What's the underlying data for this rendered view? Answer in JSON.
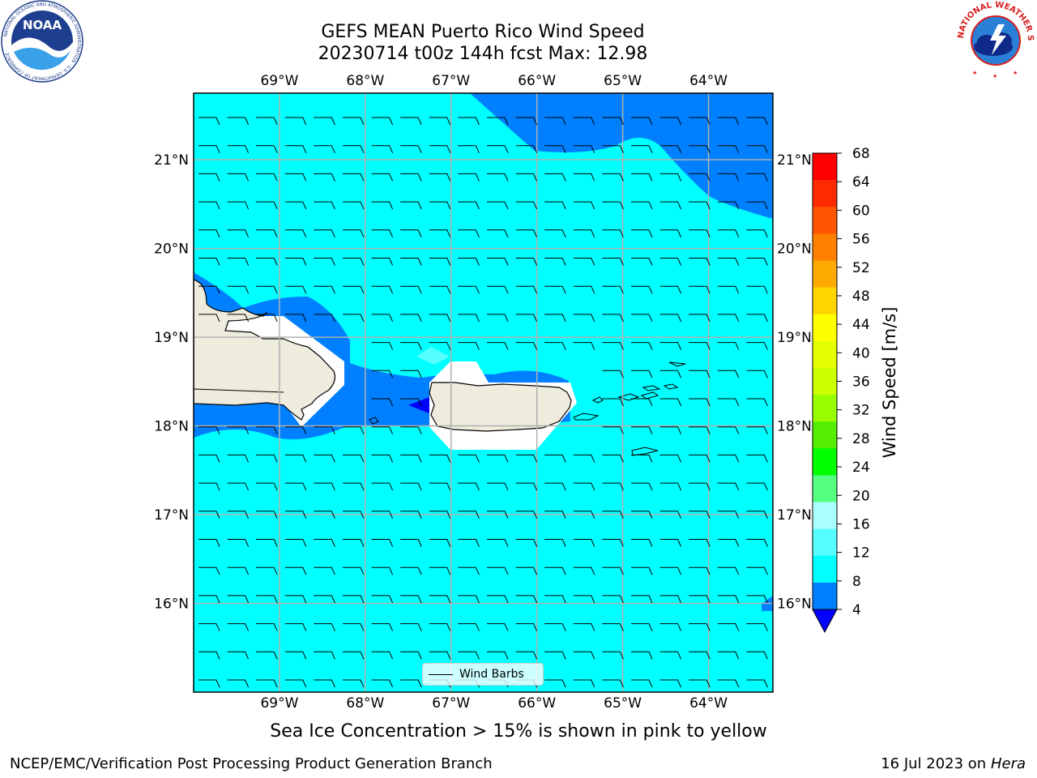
{
  "title": {
    "line1": "GEFS MEAN Puerto Rico Wind Speed",
    "line2": "20230714 t00z 144h fcst   Max: 12.98"
  },
  "logos": {
    "left": {
      "icon": "noaa-logo",
      "text": "NOAA",
      "ring_text": "NATIONAL OCEANIC AND ATMOSPHERIC ADMINISTRATION · U.S. DEPARTMENT OF COMMERCE"
    },
    "right": {
      "icon": "nws-logo",
      "ring_text": "NATIONAL WEATHER SERVICE"
    }
  },
  "map": {
    "lon_labels": [
      "69°W",
      "68°W",
      "67°W",
      "66°W",
      "65°W",
      "64°W"
    ],
    "lat_labels": [
      "21°N",
      "20°N",
      "19°N",
      "18°N",
      "17°N",
      "16°N"
    ],
    "lon_range": [
      -70,
      -63.25
    ],
    "lat_range": [
      15,
      21.75
    ],
    "colors": {
      "wind_4_8": "#0080ff",
      "wind_8_12": "#00ffff",
      "below_4": "#0000ff",
      "land": "#eeecdc",
      "grid": "#b0b0b0"
    },
    "legend": {
      "label": "Wind Barbs"
    }
  },
  "colorbar": {
    "title": "Wind Speed [m/s]",
    "ticks": [
      "68",
      "64",
      "60",
      "56",
      "52",
      "48",
      "44",
      "40",
      "36",
      "32",
      "28",
      "24",
      "20",
      "16",
      "12",
      "8",
      "4"
    ],
    "colors": [
      "#ff0000",
      "#ff2a00",
      "#ff5500",
      "#ff8000",
      "#ffaa00",
      "#ffd500",
      "#ffff00",
      "#e6ff00",
      "#ccff00",
      "#99ff00",
      "#55ee00",
      "#00ff00",
      "#55ff80",
      "#aaffff",
      "#55ffff",
      "#00ffff",
      "#0080ff"
    ],
    "extend_color": "#0000ff"
  },
  "footnote": "Sea Ice Concentration > 15% is shown in pink to yellow",
  "footer": {
    "left": "NCEP/EMC/Verification Post Processing Product Generation Branch",
    "date": "16 Jul 2023 on ",
    "host": "Hera"
  }
}
